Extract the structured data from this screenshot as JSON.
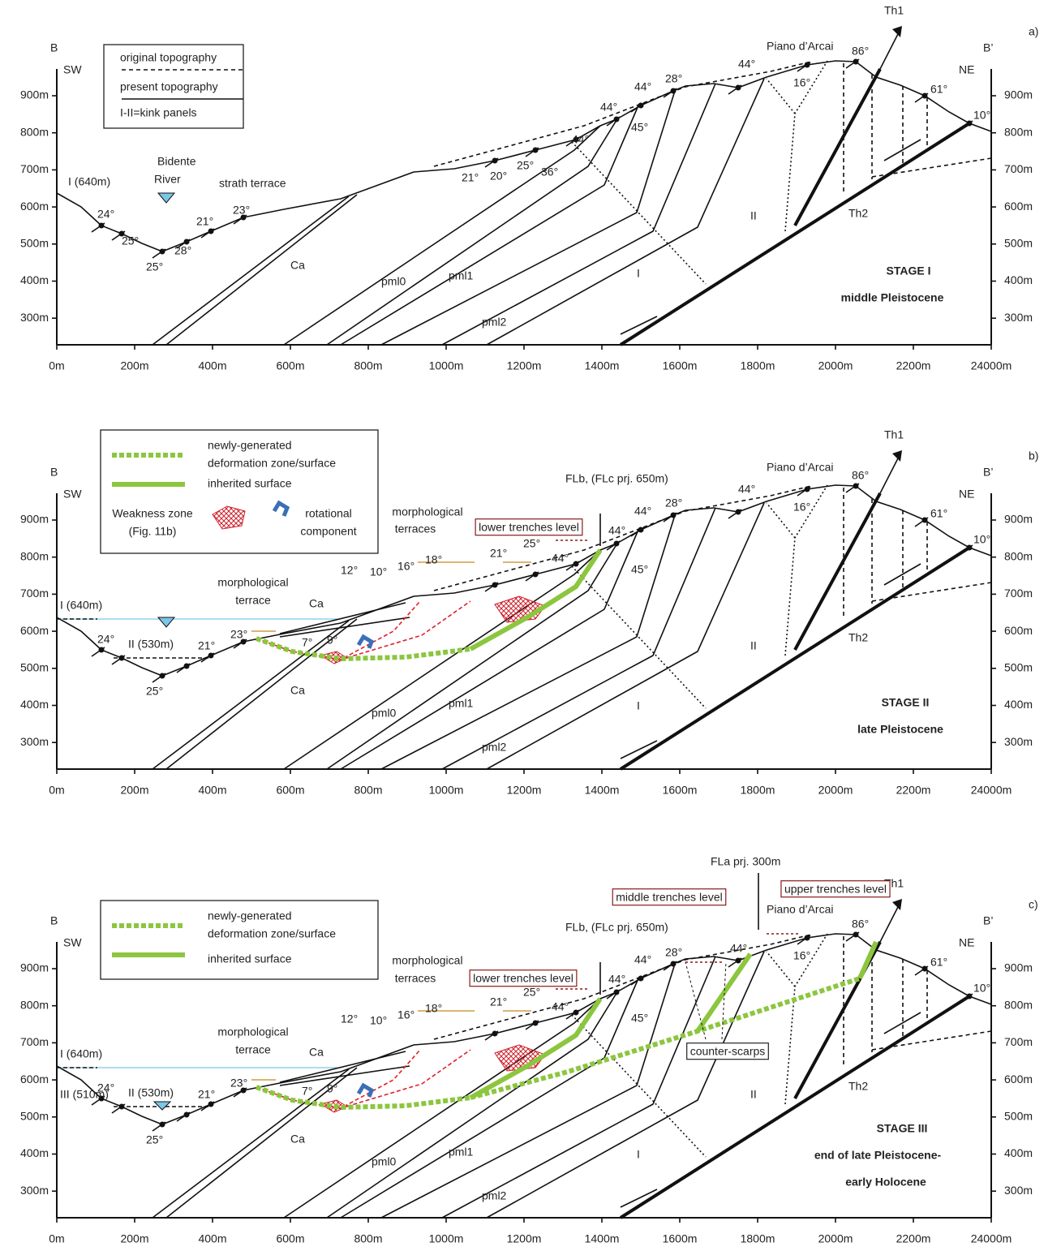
{
  "axes": {
    "left_end": "B",
    "right_end": "B’",
    "left_dir": "SW",
    "right_dir": "NE",
    "y_ticks": [
      "900m",
      "800m",
      "700m",
      "600m",
      "500m",
      "400m",
      "300m"
    ],
    "x_ticks": [
      "0m",
      "200m",
      "400m",
      "600m",
      "800m",
      "1000m",
      "1200m",
      "1400m",
      "1600m",
      "1800m",
      "2000m",
      "2200m",
      "24000m"
    ]
  },
  "panels": [
    {
      "label": "a)",
      "legend": [
        "original topography",
        "present topography",
        "I-II=kink panels"
      ],
      "stage": [
        "STAGE I",
        "middle Pleistocene"
      ],
      "labels": [
        "Th1",
        "Piano d’Arcai",
        "86°",
        "44°",
        "28°",
        "44°",
        "44°",
        "45°",
        "16°",
        "61°",
        "10°",
        "44°",
        "36°",
        "25°",
        "20°",
        "21°",
        "I (640m)",
        "Bidente",
        "River",
        "strath terrace",
        "24°",
        "25°",
        "23°",
        "21°",
        "28°",
        "25°",
        "Ca",
        "pml0",
        "pml1",
        "pml2",
        "I",
        "II",
        "Th2"
      ]
    },
    {
      "label": "b)",
      "legend": [
        "newly-generated",
        "deformation zone/surface",
        "inherited surface",
        "Weakness zone",
        "(Fig. 11b)",
        "rotational",
        "component"
      ],
      "stage": [
        "STAGE II",
        "late Pleistocene"
      ],
      "labels": [
        "Th1",
        "Piano d’Arcai",
        "86°",
        "44°",
        "28°",
        "44°",
        "16°",
        "61°",
        "10°",
        "44°",
        "45°",
        "44°",
        "25°",
        "21°",
        "18°",
        "16°",
        "10°",
        "12°",
        "FLb, (FLc prj. 650m)",
        "lower trenches level",
        "morphological",
        "terraces",
        "morphological",
        "terrace",
        "I (640m)",
        "Ca",
        "II (530m)",
        "24°",
        "21°",
        "23°",
        "7°",
        "9°",
        "25°",
        "Ca",
        "pml0",
        "pml1",
        "pml2",
        "I",
        "II",
        "Th2"
      ]
    },
    {
      "label": "c)",
      "legend": [
        "newly-generated",
        "deformation zone/surface",
        "inherited surface"
      ],
      "stage": [
        "STAGE III",
        "end of late Pleistocene-",
        "early Holocene"
      ],
      "labels": [
        "Th1",
        "Piano d’Arcai",
        "86°",
        "44°",
        "28°",
        "44°",
        "16°",
        "61°",
        "10°",
        "44°",
        "45°",
        "44°",
        "25°",
        "21°",
        "18°",
        "16°",
        "10°",
        "12°",
        "FLb, (FLc prj. 650m)",
        "lower trenches level",
        "morphological",
        "terraces",
        "morphological",
        "terrace",
        "I (640m)",
        "Ca",
        "II (530m)",
        "24°",
        "21°",
        "23°",
        "7°",
        "9°",
        "25°",
        "Ca",
        "pml0",
        "pml1",
        "pml2",
        "I",
        "II",
        "Th2",
        "FLa prj. 300m",
        "upper trenches level",
        "middle trenches level",
        "counter-scarps",
        "III (510m)"
      ]
    }
  ]
}
